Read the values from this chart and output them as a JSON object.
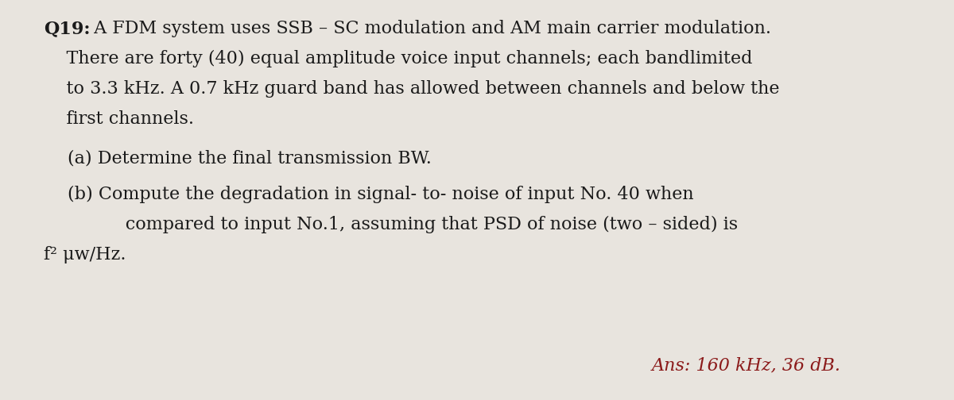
{
  "background_color": "#e8e4de",
  "q19_bold": "Q19:",
  "q19_rest": " A FDM system uses SSB – SC modulation and AM main carrier modulation.",
  "line2": "    There are forty (40) equal amplitude voice input channels; each bandlimited",
  "line3": "    to 3.3 kHz. A 0.7 kHz guard band has allowed between channels and below the",
  "line4": "    first channels.",
  "part_a": "(a) Determine the final transmission BW.",
  "part_b_line1": "(b) Compute the degradation in signal- to- noise of input No. 40 when",
  "part_b_line2": "      compared to input No.1, assuming that PSD of noise (two – sided) is",
  "part_b_line3": "f² μw/Hz.",
  "ans_text": "Ans: 160 kHz, 36 dB.",
  "ans_color": "#8b1a1a",
  "text_color": "#1a1a1a",
  "font_size_main": 16,
  "font_size_ans": 16
}
